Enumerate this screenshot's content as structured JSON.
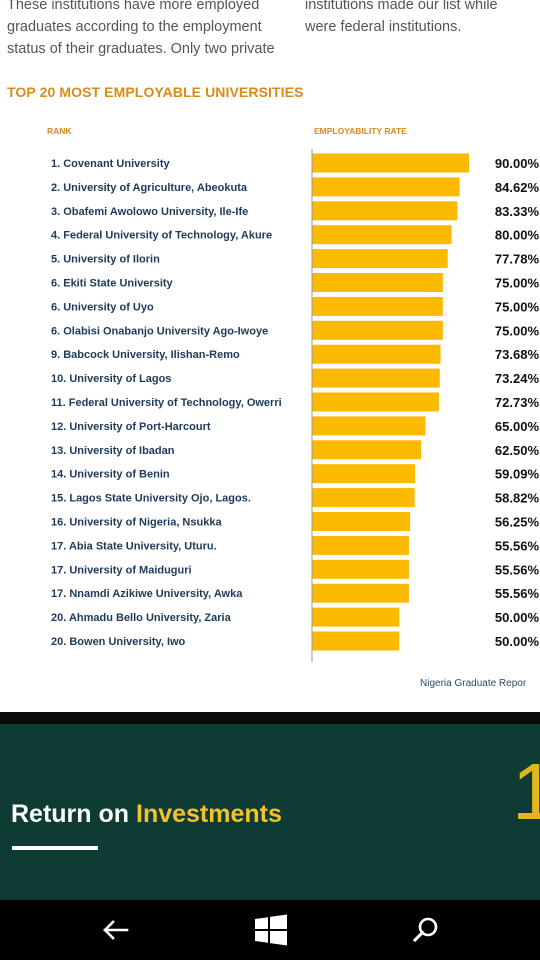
{
  "intro": {
    "left_lines": [
      "These institutions have more employed",
      "graduates according to the employment",
      "status of their graduates. Only two private"
    ],
    "right_lines": [
      "institutions made our list while",
      "were federal institutions."
    ]
  },
  "chart_data": {
    "type": "bar",
    "orientation": "horizontal",
    "title": "TOP  20 MOST EMPLOYABLE UNIVERSITIES",
    "category_header": "RANK",
    "value_header": "EMPLOYABILITY RATE",
    "categories": [
      "1. Covenant University",
      "2. University of Agriculture, Abeokuta",
      "3. Obafemi Awolowo University, Ile-Ife",
      "4. Federal University of Technology, Akure",
      "5. University of Ilorin",
      "6. Ekiti State University",
      "6. University of Uyo",
      "6. Olabisi Onabanjo University Ago-Iwoye",
      "9. Babcock University, Ilishan-Remo",
      "10. University of Lagos",
      "11. Federal University of Technology, Owerri",
      "12. University of Port-Harcourt",
      "13. University of Ibadan",
      "14. University of Benin",
      "15. Lagos State University Ojo, Lagos.",
      "16. University of Nigeria, Nsukka",
      "17. Abia State University, Uturu.",
      "17. University of Maiduguri",
      "17. Nnamdi Azikiwe University, Awka",
      "20. Ahmadu Bello University, Zaria",
      "20. Bowen University, Iwo"
    ],
    "values": [
      90.0,
      84.62,
      83.33,
      80.0,
      77.78,
      75.0,
      75.0,
      75.0,
      73.68,
      73.24,
      72.73,
      65.0,
      62.5,
      59.09,
      58.82,
      56.25,
      55.56,
      55.56,
      55.56,
      50.0,
      50.0
    ],
    "value_labels": [
      "90.00%",
      "84.62%",
      "83.33%",
      "80.00%",
      "77.78%",
      "75.00%",
      "75.00%",
      "75.00%",
      "73.68%",
      "73.24%",
      "72.73%",
      "65.00%",
      "62.50%",
      "59.09%",
      "58.82%",
      "56.25%",
      "55.56%",
      "55.56%",
      "55.56%",
      "50.00%",
      "50.00%"
    ],
    "bar_color": "#fbb900",
    "grid": false,
    "legend": "none"
  },
  "source_text": "Nigeria Graduate Repor",
  "section": {
    "title_white": "Return on ",
    "title_yellow": "Investments",
    "page_number": "1"
  },
  "navbar": {
    "back_icon": "back-arrow-icon",
    "home_icon": "windows-logo-icon",
    "search_icon": "search-icon"
  },
  "colors": {
    "accent_orange": "#d98b1a",
    "section_bg": "#0e3b33",
    "accent_yellow": "#f2c22e"
  }
}
